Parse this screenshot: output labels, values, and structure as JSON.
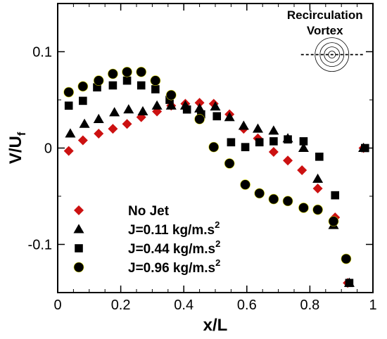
{
  "chart_data": {
    "type": "scatter",
    "xlabel": "x/L",
    "ylabel": "V/U",
    "ylabel_subscript": "f",
    "xlim": [
      0,
      1
    ],
    "ylim": [
      -0.15,
      0.15
    ],
    "xticks": [
      {
        "value": 0,
        "label": "0"
      },
      {
        "value": 0.2,
        "label": "0.2"
      },
      {
        "value": 0.4,
        "label": "0.4"
      },
      {
        "value": 0.6,
        "label": "0.6"
      },
      {
        "value": 0.8,
        "label": "0.8"
      },
      {
        "value": 1,
        "label": "1"
      }
    ],
    "yticks": [
      {
        "value": -0.1,
        "label": "-0.1"
      },
      {
        "value": 0,
        "label": "0"
      },
      {
        "value": 0.1,
        "label": "0.1"
      }
    ],
    "grid": false,
    "legend_position": "bottom-left",
    "annotation": {
      "lines": [
        "Recirculation",
        "Vortex"
      ],
      "icon": "recirculation-vortex-icon",
      "center": [
        0.87,
        0.097
      ]
    },
    "series": [
      {
        "name": "No Jet",
        "marker": "diamond",
        "color": "#cc1111",
        "points": [
          [
            0.035,
            -0.003
          ],
          [
            0.08,
            0.008
          ],
          [
            0.13,
            0.015
          ],
          [
            0.175,
            0.02
          ],
          [
            0.22,
            0.025
          ],
          [
            0.265,
            0.032
          ],
          [
            0.315,
            0.038
          ],
          [
            0.36,
            0.044
          ],
          [
            0.405,
            0.046
          ],
          [
            0.45,
            0.047
          ],
          [
            0.495,
            0.046
          ],
          [
            0.545,
            0.035
          ],
          [
            0.59,
            0.02
          ],
          [
            0.635,
            0.01
          ],
          [
            0.685,
            -0.004
          ],
          [
            0.73,
            -0.013
          ],
          [
            0.775,
            -0.023
          ],
          [
            0.825,
            -0.042
          ],
          [
            0.88,
            -0.072
          ],
          [
            0.92,
            -0.14
          ],
          [
            0.97,
            0.0
          ]
        ]
      },
      {
        "name": "J=0.11 kg/m.s",
        "name_superscript": "2",
        "marker": "triangle",
        "color": "#000000",
        "points": [
          [
            0.04,
            0.015
          ],
          [
            0.085,
            0.025
          ],
          [
            0.13,
            0.03
          ],
          [
            0.18,
            0.037
          ],
          [
            0.225,
            0.04
          ],
          [
            0.27,
            0.038
          ],
          [
            0.315,
            0.044
          ],
          [
            0.36,
            0.044
          ],
          [
            0.405,
            0.044
          ],
          [
            0.45,
            0.041
          ],
          [
            0.5,
            0.043
          ],
          [
            0.545,
            0.032
          ],
          [
            0.59,
            0.023
          ],
          [
            0.635,
            0.02
          ],
          [
            0.685,
            0.018
          ],
          [
            0.73,
            0.01
          ],
          [
            0.78,
            0.0
          ],
          [
            0.825,
            -0.032
          ],
          [
            0.875,
            -0.08
          ],
          [
            0.925,
            -0.14
          ],
          [
            0.97,
            0.0
          ]
        ]
      },
      {
        "name": "J=0.44 kg/m.s",
        "name_superscript": "2",
        "marker": "square",
        "color": "#000000",
        "points": [
          [
            0.035,
            0.044
          ],
          [
            0.08,
            0.049
          ],
          [
            0.125,
            0.063
          ],
          [
            0.175,
            0.065
          ],
          [
            0.22,
            0.07
          ],
          [
            0.265,
            0.065
          ],
          [
            0.31,
            0.061
          ],
          [
            0.355,
            0.05
          ],
          [
            0.41,
            0.04
          ],
          [
            0.455,
            0.035
          ],
          [
            0.505,
            0.033
          ],
          [
            0.55,
            0.006
          ],
          [
            0.595,
            0.001
          ],
          [
            0.64,
            0.006
          ],
          [
            0.685,
            0.007
          ],
          [
            0.73,
            0.009
          ],
          [
            0.78,
            0.007
          ],
          [
            0.83,
            -0.009
          ],
          [
            0.88,
            -0.049
          ],
          [
            0.925,
            -0.14
          ],
          [
            0.975,
            0.0
          ]
        ]
      },
      {
        "name": "J=0.96 kg/m.s",
        "name_superscript": "2",
        "marker": "circle",
        "color": "#000000",
        "points": [
          [
            0.035,
            0.058
          ],
          [
            0.08,
            0.064
          ],
          [
            0.13,
            0.07
          ],
          [
            0.175,
            0.077
          ],
          [
            0.22,
            0.079
          ],
          [
            0.265,
            0.079
          ],
          [
            0.31,
            0.07
          ],
          [
            0.36,
            0.055
          ],
          [
            0.45,
            0.03
          ],
          [
            0.495,
            0.001
          ],
          [
            0.545,
            -0.016
          ],
          [
            0.595,
            -0.038
          ],
          [
            0.64,
            -0.047
          ],
          [
            0.685,
            -0.053
          ],
          [
            0.73,
            -0.055
          ],
          [
            0.78,
            -0.062
          ],
          [
            0.825,
            -0.064
          ],
          [
            0.875,
            -0.076
          ],
          [
            0.915,
            -0.115
          ]
        ]
      }
    ]
  }
}
